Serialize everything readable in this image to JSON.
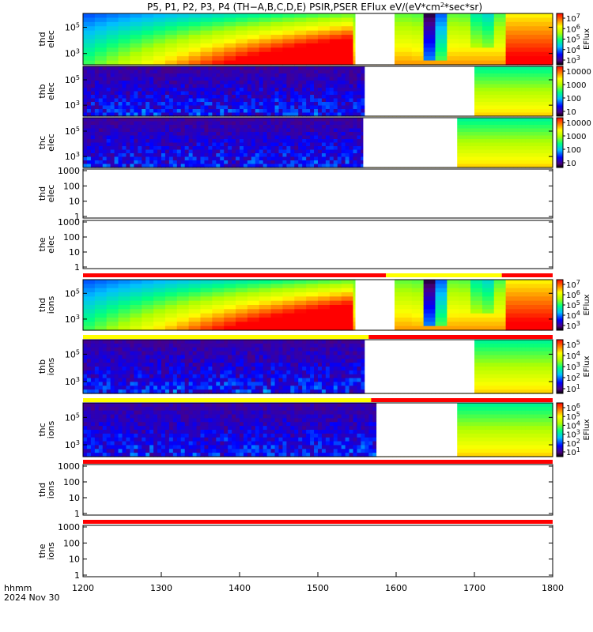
{
  "title_parts": {
    "prefix": "P5, P1, P2, P3, P4 (TH−A,B,C,D,E) PSIR,PSER EFlux eV/(eV*cm",
    "exp": "2",
    "suffix": "*sec*sr)"
  },
  "footer": {
    "format_label": "hhmm",
    "date": "2024 Nov 30"
  },
  "chart_data": {
    "type": "heatmap",
    "x_ticks": [
      "1200",
      "1300",
      "1400",
      "1500",
      "1600",
      "1700",
      "1800"
    ],
    "xlim": [
      1200,
      1800
    ],
    "panels": [
      {
        "probe": "thd",
        "species": "elec",
        "ylabel": [
          "thd",
          "elec"
        ],
        "kind": "spec",
        "yticks": [
          {
            "m": "10",
            "e": "3"
          },
          {
            "m": "10",
            "e": "5"
          }
        ],
        "colorbar": {
          "label": "EFlux",
          "ticks": [
            {
              "m": "10",
              "e": "3"
            },
            {
              "m": "10",
              "e": "4"
            },
            {
              "m": "10",
              "e": "5"
            },
            {
              "m": "10",
              "e": "6"
            },
            {
              "m": "10",
              "e": "7"
            }
          ]
        },
        "gaps": [
          [
            1548,
            1598
          ]
        ],
        "no_data_after": null
      },
      {
        "probe": "thb",
        "species": "elec",
        "ylabel": [
          "thb",
          "elec"
        ],
        "kind": "spec",
        "yticks": [
          {
            "m": "10",
            "e": "3"
          },
          {
            "m": "10",
            "e": "5"
          }
        ],
        "colorbar": {
          "label": "",
          "ticks": [
            {
              "t": "10"
            },
            {
              "t": "100"
            },
            {
              "t": "1000"
            },
            {
              "t": "10000"
            }
          ]
        },
        "gaps": [
          [
            1560,
            1700
          ]
        ],
        "no_data_after": null
      },
      {
        "probe": "thc",
        "species": "elec",
        "ylabel": [
          "thc",
          "elec"
        ],
        "kind": "spec",
        "yticks": [
          {
            "m": "10",
            "e": "3"
          },
          {
            "m": "10",
            "e": "5"
          }
        ],
        "colorbar": {
          "label": "",
          "ticks": [
            {
              "t": "10"
            },
            {
              "t": "100"
            },
            {
              "t": "1000"
            },
            {
              "t": "10000"
            }
          ]
        },
        "gaps": [
          [
            1558,
            1678
          ]
        ],
        "no_data_after": null
      },
      {
        "probe": "thd",
        "species": "elec",
        "ylabel": [
          "thd",
          "elec"
        ],
        "kind": "empty",
        "yticks": [
          {
            "t": "1"
          },
          {
            "t": "10"
          },
          {
            "t": "100"
          },
          {
            "t": "1000"
          }
        ],
        "colorbar": null
      },
      {
        "probe": "the",
        "species": "elec",
        "ylabel": [
          "the",
          "elec"
        ],
        "kind": "empty",
        "yticks": [
          {
            "t": "1"
          },
          {
            "t": "10"
          },
          {
            "t": "100"
          },
          {
            "t": "1000"
          }
        ],
        "colorbar": null,
        "mode_bar": [
          {
            "from": 1200,
            "to": 1587,
            "color": "#ff0000"
          },
          {
            "from": 1587,
            "to": 1735,
            "color": "#ffff00"
          },
          {
            "from": 1735,
            "to": 1800,
            "color": "#ff0000"
          }
        ]
      },
      {
        "probe": "thd",
        "species": "ions",
        "ylabel": [
          "thd",
          "ions"
        ],
        "kind": "spec",
        "yticks": [
          {
            "m": "10",
            "e": "3"
          },
          {
            "m": "10",
            "e": "5"
          }
        ],
        "colorbar": {
          "label": "EFlux",
          "ticks": [
            {
              "m": "10",
              "e": "3"
            },
            {
              "m": "10",
              "e": "4"
            },
            {
              "m": "10",
              "e": "5"
            },
            {
              "m": "10",
              "e": "6"
            },
            {
              "m": "10",
              "e": "7"
            }
          ]
        },
        "gaps": [
          [
            1548,
            1598
          ]
        ],
        "no_data_after": null,
        "mode_bar": [
          {
            "from": 1200,
            "to": 1565,
            "color": "#ffff00"
          },
          {
            "from": 1565,
            "to": 1800,
            "color": "#ff0000"
          }
        ]
      },
      {
        "probe": "thb",
        "species": "ions",
        "ylabel": [
          "thb",
          "ions"
        ],
        "kind": "spec",
        "yticks": [
          {
            "m": "10",
            "e": "3"
          },
          {
            "m": "10",
            "e": "5"
          }
        ],
        "colorbar": {
          "label": "EFlux",
          "ticks": [
            {
              "m": "10",
              "e": "1"
            },
            {
              "m": "10",
              "e": "2"
            },
            {
              "m": "10",
              "e": "3"
            },
            {
              "m": "10",
              "e": "4"
            },
            {
              "m": "10",
              "e": "5"
            }
          ]
        },
        "gaps": [
          [
            1560,
            1700
          ]
        ],
        "no_data_after": null,
        "mode_bar": [
          {
            "from": 1200,
            "to": 1568,
            "color": "#ffff00"
          },
          {
            "from": 1568,
            "to": 1800,
            "color": "#ff0000"
          }
        ]
      },
      {
        "probe": "thc",
        "species": "ions",
        "ylabel": [
          "thc",
          "ions"
        ],
        "kind": "spec",
        "yticks": [
          {
            "m": "10",
            "e": "3"
          },
          {
            "m": "10",
            "e": "5"
          }
        ],
        "colorbar": {
          "label": "EFlux",
          "ticks": [
            {
              "m": "10",
              "e": "1"
            },
            {
              "m": "10",
              "e": "2"
            },
            {
              "m": "10",
              "e": "3"
            },
            {
              "m": "10",
              "e": "4"
            },
            {
              "m": "10",
              "e": "5"
            },
            {
              "m": "10",
              "e": "6"
            }
          ]
        },
        "gaps": [
          [
            1575,
            1678
          ]
        ],
        "no_data_after": null,
        "mode_bar": [
          {
            "from": 1200,
            "to": 1800,
            "color": "#ff0000"
          }
        ]
      },
      {
        "probe": "thd",
        "species": "ions",
        "ylabel": [
          "thd",
          "ions"
        ],
        "kind": "empty",
        "yticks": [
          {
            "t": "1"
          },
          {
            "t": "10"
          },
          {
            "t": "100"
          },
          {
            "t": "1000"
          }
        ],
        "colorbar": null,
        "mode_bar": [
          {
            "from": 1200,
            "to": 1800,
            "color": "#ff0000"
          }
        ]
      },
      {
        "probe": "the",
        "species": "ions",
        "ylabel": [
          "the",
          "ions"
        ],
        "kind": "empty",
        "yticks": [
          {
            "t": "1"
          },
          {
            "t": "10"
          },
          {
            "t": "100"
          },
          {
            "t": "1000"
          }
        ],
        "colorbar": null
      }
    ]
  }
}
